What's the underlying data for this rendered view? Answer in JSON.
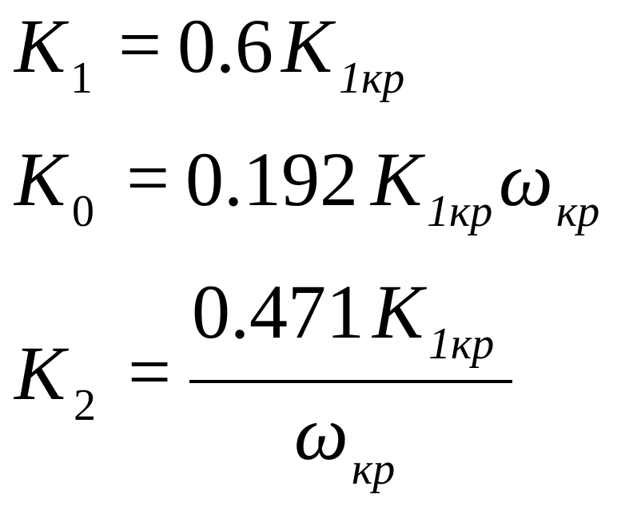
{
  "equations": [
    {
      "lhs": {
        "symbol": "K",
        "subscript": "1"
      },
      "equals": "=",
      "coefficient": "0.6",
      "factor": {
        "symbol": "K",
        "subscript": "1кр"
      }
    },
    {
      "lhs": {
        "symbol": "K",
        "subscript": "0"
      },
      "equals": "=",
      "coefficient": "0.192",
      "factor": {
        "symbol": "K",
        "subscript": "1кр"
      },
      "factor2": {
        "symbol": "ω",
        "subscript": "кр"
      }
    },
    {
      "lhs": {
        "symbol": "K",
        "subscript": "2"
      },
      "equals": "=",
      "numerator": {
        "coefficient": "0.471",
        "symbol": "K",
        "subscript": "1кр"
      },
      "denominator": {
        "symbol": "ω",
        "subscript": "кр"
      }
    }
  ]
}
